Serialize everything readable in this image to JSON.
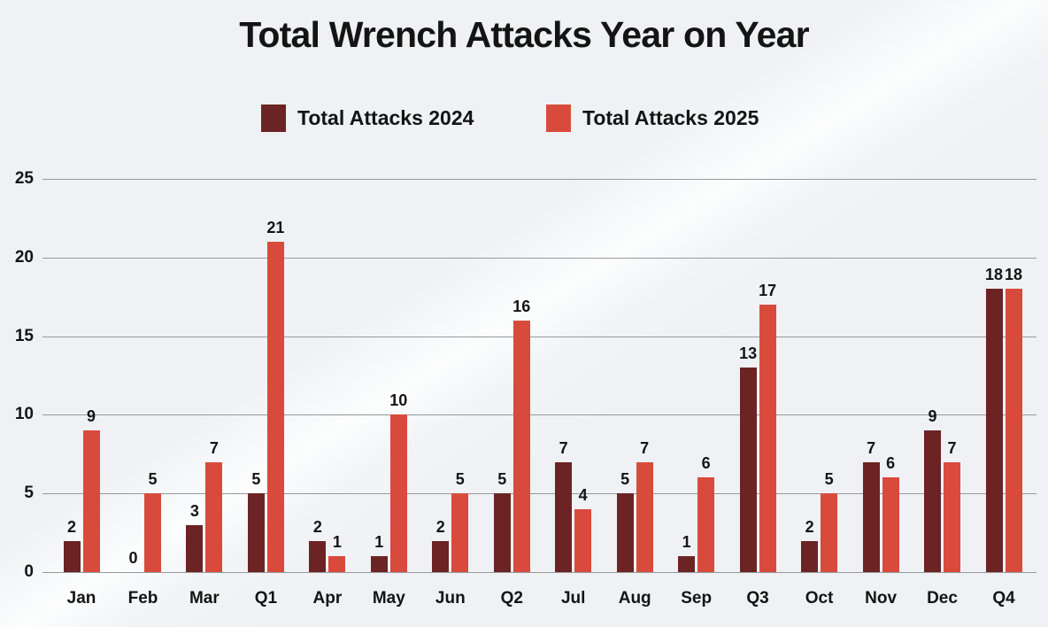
{
  "page": {
    "background_color": "#eff1f4",
    "text_color": "#141414"
  },
  "chart_data": {
    "type": "bar",
    "title": "Total Wrench Attacks Year on Year",
    "categories": [
      "Jan",
      "Feb",
      "Mar",
      "Q1",
      "Apr",
      "May",
      "Jun",
      "Q2",
      "Jul",
      "Aug",
      "Sep",
      "Q3",
      "Oct",
      "Nov",
      "Dec",
      "Q4"
    ],
    "series": [
      {
        "name": "Total Attacks 2024",
        "color": "#6b2423",
        "values": [
          2,
          0,
          3,
          5,
          2,
          1,
          2,
          5,
          7,
          5,
          1,
          13,
          2,
          7,
          9,
          18
        ]
      },
      {
        "name": "Total Attacks 2025",
        "color": "#d84b3c",
        "values": [
          9,
          5,
          7,
          21,
          1,
          10,
          5,
          16,
          4,
          7,
          6,
          17,
          5,
          6,
          7,
          18
        ]
      }
    ],
    "ylim": [
      0,
      25
    ],
    "yticks": [
      0,
      5,
      10,
      15,
      20,
      25
    ],
    "grid": true,
    "gridline_color": "#98999b",
    "legend_position": "top-center",
    "value_labels_shown": true,
    "xlabel": "",
    "ylabel": ""
  }
}
